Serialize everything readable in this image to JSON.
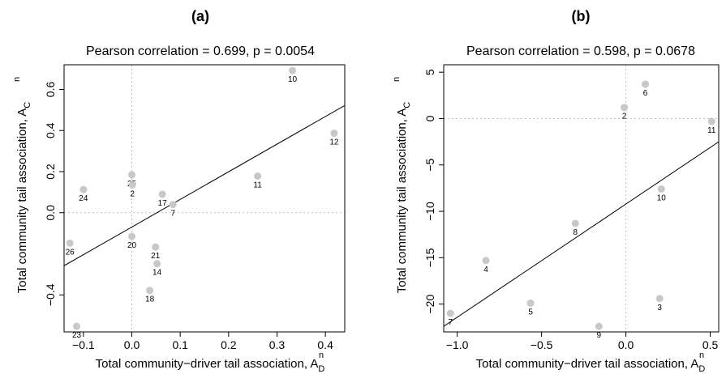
{
  "chart_data": [
    {
      "type": "scatter",
      "panel_label": "(a)",
      "subtitle": "Pearson correlation = 0.699, p = 0.0054",
      "xlabel": "Total community−driver tail association, A",
      "xlabel_sub": "D",
      "xlabel_sup": "n",
      "ylabel": "Total community tail association, A",
      "ylabel_sub": "C",
      "ylabel_sup": "n",
      "xlim": [
        -0.14,
        0.44
      ],
      "ylim": [
        -0.58,
        0.72
      ],
      "xticks": [
        -0.1,
        0.0,
        0.1,
        0.2,
        0.3,
        0.4
      ],
      "xtick_labels": [
        "−0.1",
        "0.0",
        "0.1",
        "0.2",
        "0.3",
        "0.4"
      ],
      "yticks": [
        -0.4,
        0.0,
        0.2,
        0.4,
        0.6
      ],
      "ytick_labels": [
        "−0.4",
        "0.0",
        "0.2",
        "0.4",
        "0.6"
      ],
      "reference_lines": {
        "x": 0,
        "y": 0
      },
      "point_color": "#c8c8c8",
      "points": [
        {
          "label": "10",
          "x": 0.332,
          "y": 0.692
        },
        {
          "label": "12",
          "x": 0.418,
          "y": 0.387
        },
        {
          "label": "11",
          "x": 0.26,
          "y": 0.178
        },
        {
          "label": "25",
          "x": 0.0,
          "y": 0.185
        },
        {
          "label": "2",
          "x": 0.001,
          "y": 0.135
        },
        {
          "label": "24",
          "x": -0.1,
          "y": 0.113
        },
        {
          "label": "17",
          "x": 0.063,
          "y": 0.09
        },
        {
          "label": "7",
          "x": 0.085,
          "y": 0.04
        },
        {
          "label": "20",
          "x": 0.0,
          "y": -0.115
        },
        {
          "label": "21",
          "x": 0.049,
          "y": -0.167
        },
        {
          "label": "14",
          "x": 0.052,
          "y": -0.248
        },
        {
          "label": "26",
          "x": -0.128,
          "y": -0.148
        },
        {
          "label": "18",
          "x": 0.037,
          "y": -0.378
        },
        {
          "label": "23",
          "x": -0.114,
          "y": -0.553
        }
      ],
      "fit_line": {
        "x": [
          -0.14,
          0.44
        ],
        "y": [
          -0.258,
          0.522
        ]
      }
    },
    {
      "type": "scatter",
      "panel_label": "(b)",
      "subtitle": "Pearson correlation = 0.598, p = 0.0678",
      "xlabel": "Total community−driver tail association, A",
      "xlabel_sub": "D",
      "xlabel_sup": "n",
      "ylabel": "Total community tail association, A",
      "ylabel_sub": "C",
      "ylabel_sup": "n",
      "xlim": [
        -1.08,
        0.55
      ],
      "ylim": [
        -23.0,
        5.8
      ],
      "xticks": [
        -1.0,
        -0.5,
        0.0,
        0.5
      ],
      "xtick_labels": [
        "−1.0",
        "−0.5",
        "0.0",
        "0.5"
      ],
      "yticks": [
        -20,
        -15,
        -10,
        -5,
        0,
        5
      ],
      "ytick_labels": [
        "−20",
        "−15",
        "−10",
        "−5",
        "0",
        "5"
      ],
      "reference_lines": {
        "x": 0,
        "y": 0
      },
      "point_color": "#c8c8c8",
      "points": [
        {
          "label": "6",
          "x": 0.115,
          "y": 3.7
        },
        {
          "label": "2",
          "x": -0.01,
          "y": 1.2
        },
        {
          "label": "11",
          "x": 0.508,
          "y": -0.3
        },
        {
          "label": "10",
          "x": 0.21,
          "y": -7.6
        },
        {
          "label": "8",
          "x": -0.3,
          "y": -11.3
        },
        {
          "label": "4",
          "x": -0.83,
          "y": -15.3
        },
        {
          "label": "5",
          "x": -0.565,
          "y": -19.9
        },
        {
          "label": "3",
          "x": 0.2,
          "y": -19.4
        },
        {
          "label": "9",
          "x": -0.16,
          "y": -22.4
        },
        {
          "label": "7",
          "x": -1.04,
          "y": -21.0
        }
      ],
      "fit_line": {
        "x": [
          -1.08,
          0.55
        ],
        "y": [
          -22.4,
          -2.5
        ]
      }
    }
  ]
}
